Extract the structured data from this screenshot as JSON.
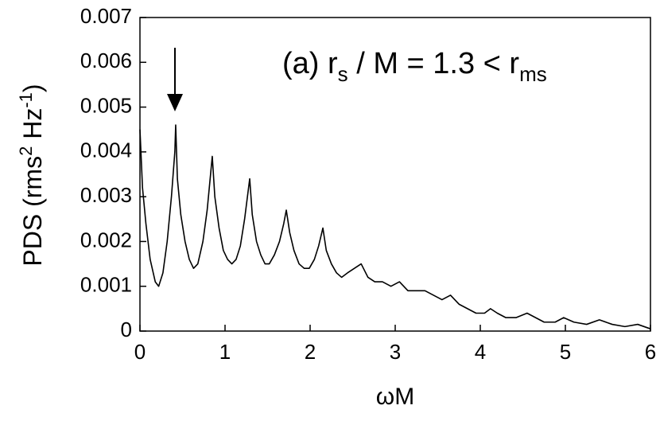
{
  "chart_data": {
    "type": "line",
    "annotation": [
      "(a) r",
      "s",
      " / M = 1.3 < r",
      "ms"
    ],
    "xlabel": "ωM",
    "ylabel": [
      "PDS (rms",
      "2",
      " Hz",
      "-1",
      ")"
    ],
    "color": "#000000",
    "x": [
      0,
      0.03,
      0.07,
      0.12,
      0.18,
      0.22,
      0.27,
      0.32,
      0.37,
      0.41,
      0.42,
      0.44,
      0.48,
      0.53,
      0.58,
      0.63,
      0.68,
      0.74,
      0.79,
      0.83,
      0.85,
      0.88,
      0.93,
      0.98,
      1.03,
      1.08,
      1.13,
      1.18,
      1.23,
      1.27,
      1.29,
      1.32,
      1.37,
      1.42,
      1.47,
      1.52,
      1.58,
      1.64,
      1.69,
      1.72,
      1.76,
      1.81,
      1.87,
      1.93,
      1.99,
      2.05,
      2.1,
      2.15,
      2.19,
      2.25,
      2.31,
      2.37,
      2.44,
      2.52,
      2.6,
      2.68,
      2.76,
      2.85,
      2.95,
      3.05,
      3.15,
      3.25,
      3.35,
      3.45,
      3.55,
      3.65,
      3.75,
      3.85,
      3.95,
      4.05,
      4.12,
      4.2,
      4.3,
      4.42,
      4.55,
      4.65,
      4.75,
      4.88,
      4.98,
      5.1,
      5.25,
      5.4,
      5.55,
      5.7,
      5.85,
      6
    ],
    "values": [
      0.0045,
      0.0032,
      0.0024,
      0.0016,
      0.0011,
      0.001,
      0.0013,
      0.002,
      0.003,
      0.004,
      0.0046,
      0.0034,
      0.0026,
      0.002,
      0.0016,
      0.0014,
      0.0015,
      0.002,
      0.0027,
      0.0035,
      0.0039,
      0.003,
      0.0023,
      0.0018,
      0.0016,
      0.0015,
      0.0016,
      0.0019,
      0.0025,
      0.0031,
      0.0034,
      0.0026,
      0.002,
      0.0017,
      0.0015,
      0.0015,
      0.0017,
      0.002,
      0.0024,
      0.0027,
      0.0022,
      0.0018,
      0.0015,
      0.0014,
      0.0014,
      0.0016,
      0.0019,
      0.0023,
      0.0018,
      0.0015,
      0.0013,
      0.0012,
      0.0013,
      0.0014,
      0.0015,
      0.0012,
      0.0011,
      0.0011,
      0.001,
      0.0011,
      0.0009,
      0.0009,
      0.0009,
      0.0008,
      0.0007,
      0.0008,
      0.0006,
      0.0005,
      0.0004,
      0.0004,
      0.0005,
      0.0004,
      0.0003,
      0.0003,
      0.0004,
      0.0003,
      0.0002,
      0.0002,
      0.0003,
      0.0002,
      0.00015,
      0.00025,
      0.00015,
      0.0001,
      0.00015,
      5e-05
    ],
    "xlim": [
      0,
      6
    ],
    "xticks": [
      0,
      1,
      2,
      3,
      4,
      5,
      6
    ],
    "ylim": [
      0,
      0.007
    ],
    "yticks": [
      0,
      0.001,
      0.002,
      0.003,
      0.004,
      0.005,
      0.006,
      0.007
    ]
  }
}
